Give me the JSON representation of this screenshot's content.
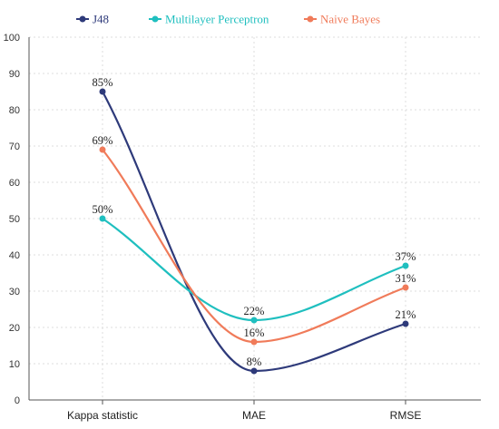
{
  "chart_data": {
    "type": "line",
    "title": "",
    "xlabel": "",
    "ylabel": "",
    "categories": [
      "Kappa statistic",
      "MAE",
      "RMSE"
    ],
    "ylim": [
      0,
      100
    ],
    "yticks": [
      0,
      10,
      20,
      30,
      40,
      50,
      60,
      70,
      80,
      90,
      100
    ],
    "grid": true,
    "legend_position": "top",
    "series": [
      {
        "name": "J48",
        "values": [
          85,
          8,
          21
        ],
        "labels": [
          "85%",
          "8%",
          "21%"
        ],
        "color": "#2e3a7a"
      },
      {
        "name": "Multilayer Perceptron",
        "values": [
          50,
          22,
          37
        ],
        "labels": [
          "50%",
          "22%",
          "37%"
        ],
        "color": "#1fbfbf"
      },
      {
        "name": "Naive Bayes",
        "values": [
          69,
          16,
          31
        ],
        "labels": [
          "69%",
          "16%",
          "31%"
        ],
        "color": "#f07b5a"
      }
    ]
  }
}
